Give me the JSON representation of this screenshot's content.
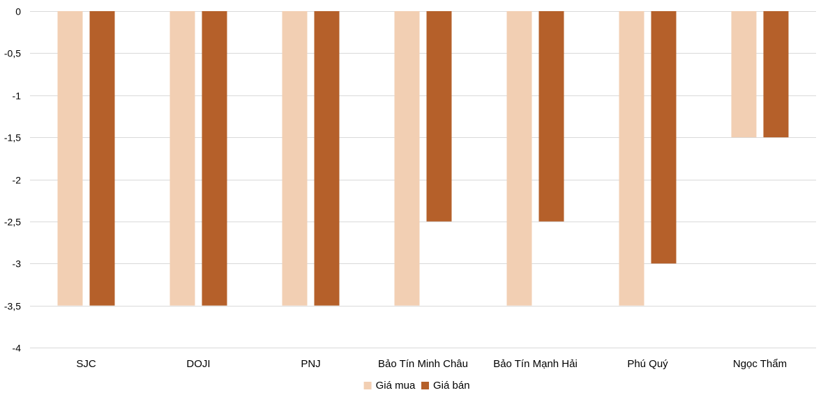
{
  "chart_data": {
    "type": "bar",
    "title": "",
    "xlabel": "",
    "ylabel": "",
    "categories": [
      "SJC",
      "DOJI",
      "PNJ",
      "Bảo Tín Minh Châu",
      "Bảo Tín Mạnh Hải",
      "Phú Quý",
      "Ngọc Thẩm"
    ],
    "series": [
      {
        "name": "Giá mua",
        "color": "#f2cfb3",
        "values": [
          -3.5,
          -3.5,
          -3.5,
          -3.5,
          -3.5,
          -3.5,
          -1.5
        ]
      },
      {
        "name": "Giá bán",
        "color": "#b5602a",
        "values": [
          -3.5,
          -3.5,
          -3.5,
          -2.5,
          -2.5,
          -3,
          -1.5
        ]
      }
    ],
    "ylim": [
      -4,
      0
    ],
    "yticks": [
      0,
      -0.5,
      -1,
      -1.5,
      -2,
      -2.5,
      -3,
      -3.5,
      -4
    ],
    "ytick_labels": [
      "0",
      "-0,5",
      "-1",
      "-1,5",
      "-2",
      "-2,5",
      "-3",
      "-3,5",
      "-4"
    ],
    "grid": true,
    "legend_position": "bottom"
  }
}
